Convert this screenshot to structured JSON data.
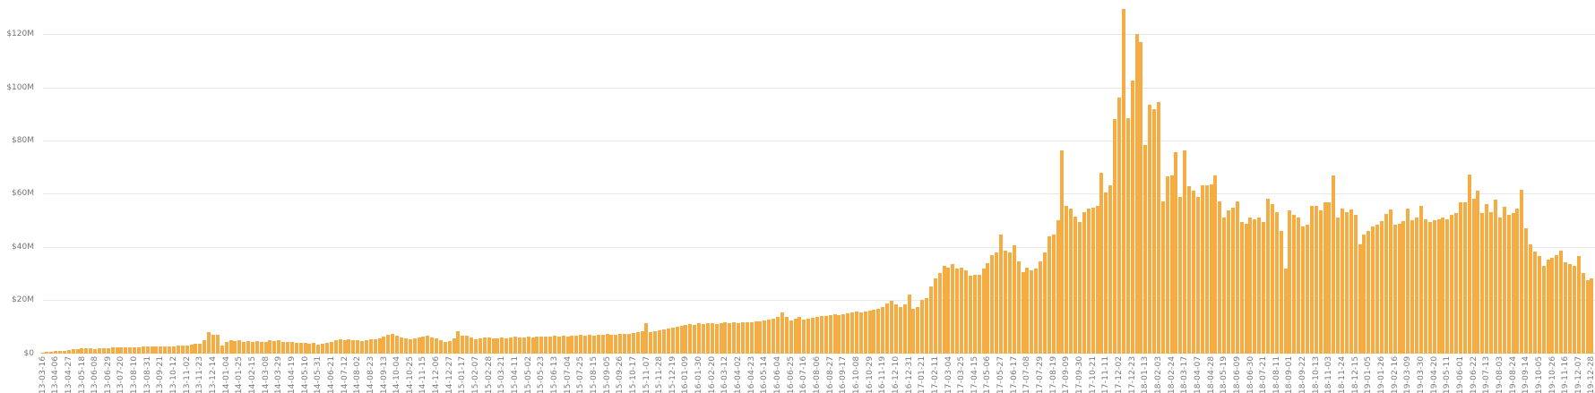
{
  "chart_data": {
    "type": "bar",
    "title": "",
    "xlabel": "",
    "ylabel": "",
    "legend": "none",
    "grid": "horizontal",
    "ylim": [
      0,
      130
    ],
    "bar_color": "#F5AC42",
    "background_color": "#FFFFFF",
    "gridline_color": "#E8E8E8",
    "axis_text_color": "#757578",
    "values_unit": "USD millions",
    "x_start": "2013-03-16",
    "x_interval": "weekly",
    "x_tick_every_n_bars": 3,
    "y_ticks": [
      {
        "label": "$0",
        "value": 0
      },
      {
        "label": "$20M",
        "value": 20
      },
      {
        "label": "$40M",
        "value": 40
      },
      {
        "label": "$60M",
        "value": 60
      },
      {
        "label": "$80M",
        "value": 80
      },
      {
        "label": "$100M",
        "value": 100
      },
      {
        "label": "$120M",
        "value": 120
      }
    ],
    "x_tick_labels": [
      "2013-03-16",
      "2013-04-06",
      "2013-04-27",
      "2013-05-18",
      "2013-06-08",
      "2013-06-29",
      "2013-07-20",
      "2013-08-10",
      "2013-08-31",
      "2013-09-21",
      "2013-10-12",
      "2013-11-02",
      "2013-11-23",
      "2013-12-14",
      "2014-01-04",
      "2014-01-25",
      "2014-02-15",
      "2014-03-08",
      "2014-03-29",
      "2014-04-19",
      "2014-05-10",
      "2014-05-31",
      "2014-06-21",
      "2014-07-12",
      "2014-08-02",
      "2014-08-23",
      "2014-09-13",
      "2014-10-04",
      "2014-10-25",
      "2014-11-15",
      "2014-12-06",
      "2014-12-27",
      "2015-01-17",
      "2015-02-07",
      "2015-02-28",
      "2015-03-21",
      "2015-04-11",
      "2015-05-02",
      "2015-05-23",
      "2015-06-13",
      "2015-07-04",
      "2015-07-25",
      "2015-08-15",
      "2015-09-05",
      "2015-09-26",
      "2015-10-17",
      "2015-11-07",
      "2015-11-28",
      "2015-12-19",
      "2016-01-09",
      "2016-01-30",
      "2016-02-20",
      "2016-03-12",
      "2016-04-02",
      "2016-04-23",
      "2016-05-14",
      "2016-06-04",
      "2016-06-25",
      "2016-07-16",
      "2016-08-06",
      "2016-08-27",
      "2016-09-17",
      "2016-10-08",
      "2016-10-29",
      "2016-11-19",
      "2016-12-10",
      "2016-12-31",
      "2017-01-21",
      "2017-02-11",
      "2017-03-04",
      "2017-03-25",
      "2017-04-15",
      "2017-05-06",
      "2017-05-27",
      "2017-06-17",
      "2017-07-08",
      "2017-07-29",
      "2017-08-19",
      "2017-09-09",
      "2017-09-30",
      "2017-10-21",
      "2017-11-11",
      "2017-12-02",
      "2017-12-23",
      "2018-01-13",
      "2018-02-03",
      "2018-02-24",
      "2018-03-17",
      "2018-04-07",
      "2018-04-28",
      "2018-05-19",
      "2018-06-09",
      "2018-06-30",
      "2018-07-21",
      "2018-08-11",
      "2018-09-01",
      "2018-09-22",
      "2018-10-13",
      "2018-11-03",
      "2018-11-24",
      "2018-12-15",
      "2019-01-05",
      "2019-01-26",
      "2019-02-16",
      "2019-03-09",
      "2019-03-30",
      "2019-04-20",
      "2019-05-11",
      "2019-06-01",
      "2019-06-22",
      "2019-07-13",
      "2019-08-03",
      "2019-08-24",
      "2019-09-14",
      "2019-10-05",
      "2019-10-26",
      "2019-11-16",
      "2019-12-07",
      "2019-12-28"
    ],
    "values": [
      0.3,
      0.4,
      0.5,
      0.7,
      0.9,
      1.0,
      1.2,
      1.4,
      1.6,
      1.8,
      1.9,
      1.8,
      1.7,
      1.8,
      1.9,
      2.0,
      2.1,
      2.2,
      2.2,
      2.3,
      2.3,
      2.2,
      2.3,
      2.4,
      2.4,
      2.5,
      2.5,
      2.6,
      2.6,
      2.7,
      2.7,
      2.8,
      2.9,
      3.0,
      3.2,
      3.4,
      3.6,
      4.8,
      7.8,
      6.9,
      7.0,
      2.9,
      4.3,
      4.9,
      4.7,
      4.9,
      4.3,
      4.7,
      4.3,
      4.7,
      4.1,
      4.3,
      4.9,
      4.6,
      4.9,
      4.3,
      4.1,
      4.3,
      3.8,
      4.0,
      3.8,
      3.6,
      3.8,
      3.3,
      3.5,
      3.8,
      4.3,
      4.9,
      5.1,
      4.9,
      5.1,
      4.9,
      4.9,
      4.7,
      4.9,
      5.1,
      5.4,
      5.7,
      6.2,
      6.9,
      7.1,
      6.5,
      5.9,
      5.7,
      5.4,
      5.7,
      5.9,
      6.2,
      6.5,
      6.0,
      5.5,
      5.0,
      4.3,
      4.7,
      5.5,
      8.4,
      6.5,
      6.7,
      5.9,
      5.4,
      5.6,
      5.8,
      6.0,
      5.7,
      5.5,
      5.8,
      5.6,
      5.9,
      6.1,
      5.8,
      6.0,
      6.2,
      6.0,
      6.3,
      6.1,
      6.4,
      6.2,
      6.5,
      6.3,
      6.6,
      6.4,
      6.7,
      6.5,
      6.8,
      6.6,
      6.9,
      6.7,
      7.0,
      6.8,
      7.1,
      6.8,
      7.0,
      7.2,
      7.4,
      7.1,
      7.5,
      7.8,
      8.1,
      11.2,
      8.0,
      8.4,
      8.6,
      8.9,
      9.2,
      9.5,
      9.8,
      10.2,
      10.6,
      11.0,
      10.7,
      11.2,
      11.0,
      11.4,
      11.2,
      11.0,
      11.3,
      11.5,
      11.2,
      11.6,
      11.4,
      11.7,
      11.5,
      11.8,
      12.1,
      11.9,
      12.3,
      12.6,
      13.0,
      13.8,
      15.4,
      13.5,
      12.4,
      13.0,
      13.5,
      12.8,
      13.0,
      13.3,
      13.8,
      14.0,
      14.1,
      14.3,
      14.5,
      14.2,
      14.6,
      15.0,
      15.3,
      15.8,
      15.2,
      15.6,
      16.0,
      16.3,
      16.6,
      17.5,
      18.8,
      19.8,
      18.3,
      17.5,
      18.3,
      22.2,
      16.6,
      17.2,
      20.0,
      20.6,
      25.0,
      28.2,
      30.1,
      32.9,
      32.3,
      33.4,
      31.8,
      32.3,
      31.2,
      29.0,
      29.5,
      29.5,
      31.8,
      34.0,
      36.8,
      37.9,
      44.6,
      38.5,
      37.9,
      40.7,
      34.6,
      30.6,
      32.3,
      31.2,
      31.8,
      34.6,
      37.9,
      44.1,
      44.6,
      50.0,
      76.3,
      55.4,
      54.4,
      51.5,
      49.4,
      53.2,
      54.4,
      54.8,
      55.4,
      67.9,
      60.5,
      63.2,
      88.0,
      96.0,
      129.5,
      88.5,
      102.5,
      120.0,
      117.0,
      78.4,
      93.5,
      91.8,
      94.6,
      57.1,
      66.6,
      66.8,
      75.6,
      58.8,
      76.3,
      62.8,
      61.2,
      58.8,
      63.2,
      63.2,
      63.4,
      66.8,
      57.1,
      51.1,
      53.8,
      54.8,
      57.1,
      49.4,
      48.7,
      51.1,
      50.5,
      51.1,
      49.4,
      58.2,
      56.1,
      53.2,
      46.0,
      31.9,
      53.8,
      52.1,
      51.1,
      47.7,
      48.2,
      55.4,
      55.4,
      53.8,
      56.6,
      56.6,
      66.8,
      51.1,
      54.4,
      53.0,
      54.0,
      52.0,
      41.0,
      44.5,
      46.0,
      47.7,
      48.5,
      49.7,
      52.5,
      54.0,
      48.4,
      48.7,
      49.7,
      54.4,
      50.0,
      51.0,
      55.4,
      50.5,
      49.5,
      50.0,
      50.5,
      51.0,
      50.4,
      52.1,
      52.7,
      56.6,
      56.6,
      67.2,
      58.2,
      61.1,
      52.7,
      56.1,
      53.2,
      57.7,
      51.0,
      54.9,
      52.1,
      52.7,
      54.3,
      61.6,
      47.0,
      41.0,
      38.1,
      36.4,
      33.0,
      35.3,
      35.9,
      37.0,
      38.6,
      34.2,
      33.6,
      33.0,
      36.4,
      30.2,
      27.5,
      28.0
    ]
  }
}
